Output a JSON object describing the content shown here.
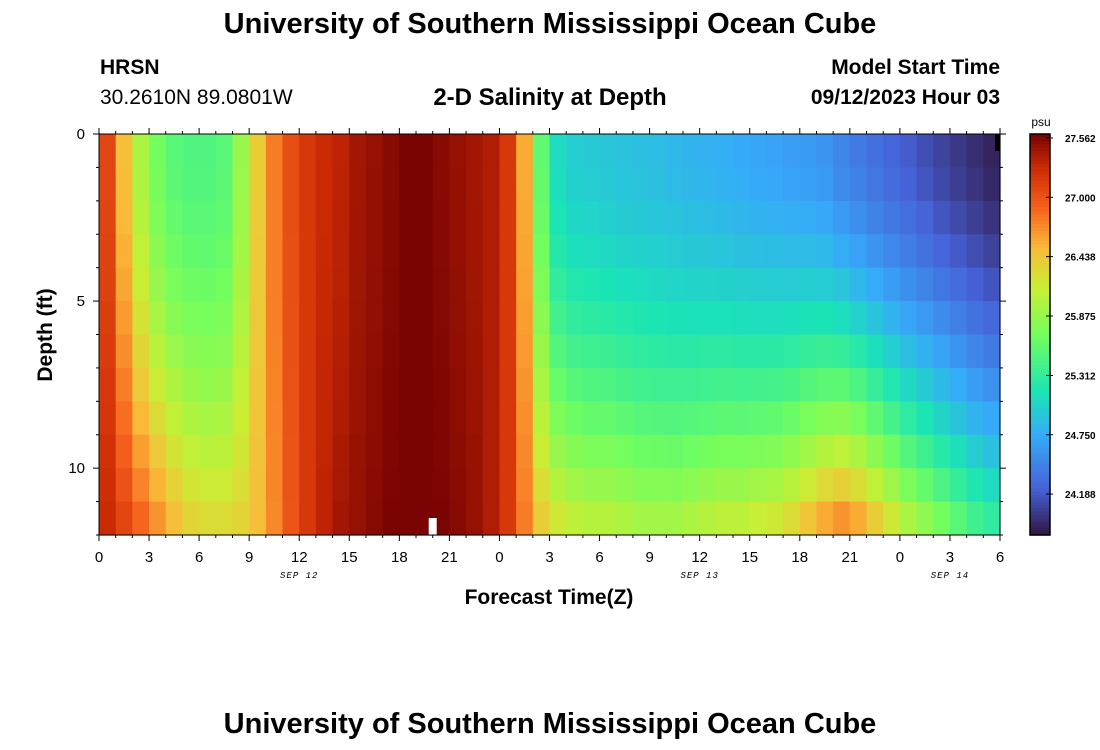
{
  "header": {
    "title": "University of Southern Mississippi Ocean Cube",
    "footer_title": "University of Southern Mississippi Ocean Cube",
    "station": "HRSN",
    "coords": "30.2610N  89.0801W",
    "product": "2-D Salinity at Depth",
    "model_start_label": "Model Start Time",
    "model_start_value": "09/12/2023 Hour 03"
  },
  "chart_data": {
    "type": "heatmap",
    "title": "2-D Salinity at Depth",
    "xlabel": "Forecast Time(Z)",
    "ylabel": "Depth (ft)",
    "x_ticks": [
      "0",
      "3",
      "6",
      "9",
      "12",
      "15",
      "18",
      "21",
      "0",
      "3",
      "6",
      "9",
      "12",
      "15",
      "18",
      "21",
      "0",
      "3",
      "6"
    ],
    "date_labels": [
      {
        "label": "SEP 12",
        "at_hour": 12
      },
      {
        "label": "SEP 13",
        "at_hour": 36
      },
      {
        "label": "SEP 14",
        "at_hour": 51
      }
    ],
    "xlim_hours": [
      0,
      54
    ],
    "y_ticks": [
      "0",
      "5",
      "10"
    ],
    "ylim_ft": [
      0,
      12
    ],
    "colorbar": {
      "unit": "psu",
      "min": 23.8,
      "max": 27.6,
      "tick_labels": [
        "27.562",
        "27.000",
        "26.438",
        "25.875",
        "25.312",
        "24.750",
        "24.188"
      ],
      "tick_values": [
        27.562,
        27.0,
        26.438,
        25.875,
        25.312,
        24.75,
        24.188
      ]
    },
    "grid": "12 depth layers x 54 hourly columns, values in psu",
    "rows_depth_ft": [
      0.5,
      1.5,
      2.5,
      3.5,
      4.5,
      5.5,
      6.5,
      7.5,
      8.5,
      9.5,
      10.5,
      11.5
    ],
    "profiles_top_to_bottom": {
      "hours": [
        0,
        1,
        2,
        3,
        4,
        5,
        6,
        7,
        8,
        9,
        10,
        11,
        12,
        13,
        14,
        15,
        16,
        17,
        18,
        19,
        20,
        21,
        22,
        23,
        24,
        25,
        26,
        27,
        28,
        29,
        30,
        31,
        32,
        33,
        34,
        35,
        36,
        37,
        38,
        39,
        40,
        41,
        42,
        43,
        44,
        45,
        46,
        47,
        48,
        49,
        50,
        51,
        52,
        53
      ],
      "surface": [
        27.1,
        26.5,
        26.0,
        25.7,
        25.55,
        25.5,
        25.5,
        25.55,
        25.9,
        26.4,
        26.8,
        27.05,
        27.2,
        27.3,
        27.35,
        27.45,
        27.5,
        27.55,
        27.6,
        27.6,
        27.55,
        27.5,
        27.45,
        27.4,
        27.2,
        26.6,
        25.6,
        25.1,
        25.0,
        24.98,
        24.95,
        24.92,
        24.9,
        24.88,
        24.85,
        24.82,
        24.8,
        24.78,
        24.75,
        24.72,
        24.7,
        24.67,
        24.65,
        24.6,
        24.5,
        24.42,
        24.35,
        24.28,
        24.22,
        24.15,
        24.08,
        24.02,
        23.96,
        23.9
      ],
      "bottom": [
        27.3,
        27.1,
        26.9,
        26.7,
        26.5,
        26.35,
        26.3,
        26.3,
        26.35,
        26.5,
        26.75,
        27.0,
        27.2,
        27.35,
        27.45,
        27.5,
        27.55,
        27.6,
        27.6,
        27.6,
        27.6,
        27.55,
        27.5,
        27.4,
        27.2,
        26.8,
        26.4,
        26.2,
        26.1,
        26.05,
        26.05,
        26.0,
        25.95,
        25.95,
        25.95,
        26.0,
        26.05,
        26.1,
        26.1,
        26.15,
        26.2,
        26.3,
        26.45,
        26.6,
        26.7,
        26.6,
        26.4,
        26.2,
        26.0,
        25.85,
        25.7,
        25.55,
        25.4,
        25.3
      ]
    },
    "markers": [
      {
        "kind": "white-bar",
        "hour": 20,
        "depth": "bottom"
      },
      {
        "kind": "black-bar",
        "hour": 54,
        "depth": "surface"
      }
    ]
  }
}
